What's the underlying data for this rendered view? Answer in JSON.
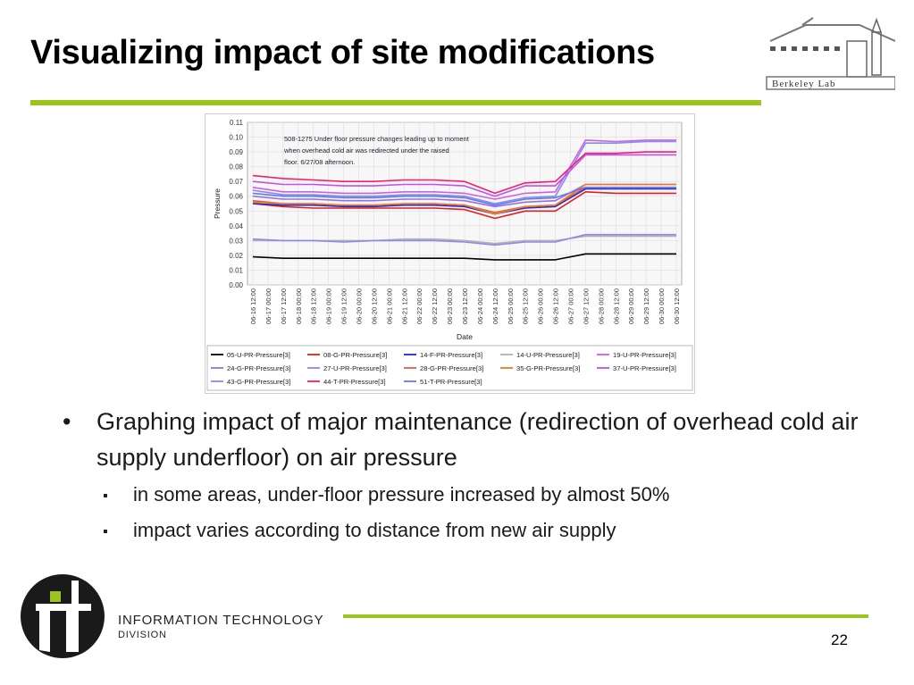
{
  "slide": {
    "title": "Visualizing impact of site modifications",
    "page_number": "22",
    "bullets": [
      {
        "text": "Graphing impact of major maintenance (redirection of overhead cold air supply underfloor) on air pressure",
        "sub": [
          "in some areas, under-floor pressure increased by almost 50%",
          "impact varies according to distance from new air supply"
        ]
      }
    ]
  },
  "logos": {
    "berkeley_lab": "Berkeley Lab",
    "it_division_line1": "INFORMATION TECHNOLOGY",
    "it_division_line2": "DIVISION"
  },
  "colors": {
    "accent_green": "#9bc51e"
  },
  "chart_data": {
    "type": "line",
    "xlabel": "Date",
    "ylabel": "Pressure",
    "ylim": [
      0.0,
      0.11
    ],
    "yticks": [
      "0.00",
      "0.01",
      "0.02",
      "0.03",
      "0.04",
      "0.05",
      "0.06",
      "0.07",
      "0.08",
      "0.09",
      "0.10",
      "0.11"
    ],
    "x_ticks": [
      "06-16 12:00",
      "06-17 00:00",
      "06-17 12:00",
      "06-18 00:00",
      "06-18 12:00",
      "06-19 00:00",
      "06-19 12:00",
      "06-20 00:00",
      "06-20 12:00",
      "06-21 00:00",
      "06-21 12:00",
      "06-22 00:00",
      "06-22 12:00",
      "06-23 00:00",
      "06-23 12:00",
      "06-24 00:00",
      "06-24 12:00",
      "06-25 00:00",
      "06-25 12:00",
      "06-26 00:00",
      "06-26 12:00",
      "06-27 00:00",
      "06-27 12:00",
      "06-28 00:00",
      "06-28 12:00",
      "06-29 00:00",
      "06-29 12:00",
      "06-30 00:00",
      "06-30 12:00"
    ],
    "annotation": [
      "508-1275 Under floor pressure changes leading up to moment",
      "when overhead cold air was redirected under the raised",
      "floor. 6/27/08 afternoon."
    ],
    "grid": true,
    "legend_position": "bottom",
    "x": [
      "06-16 12:00",
      "06-17 12:00",
      "06-18 12:00",
      "06-19 12:00",
      "06-20 12:00",
      "06-21 12:00",
      "06-22 12:00",
      "06-23 12:00",
      "06-24 12:00",
      "06-25 12:00",
      "06-26 12:00",
      "06-27 12:00",
      "06-28 12:00",
      "06-29 12:00",
      "06-30 12:00"
    ],
    "series": [
      {
        "name": "05-U-PR-Pressure[3]",
        "color": "#000000",
        "values": [
          0.019,
          0.018,
          0.018,
          0.018,
          0.018,
          0.018,
          0.018,
          0.018,
          0.017,
          0.017,
          0.017,
          0.021,
          0.021,
          0.021,
          0.021
        ]
      },
      {
        "name": "08-G-PR-Pressure[3]",
        "color": "#e02020",
        "values": [
          0.055,
          0.053,
          0.052,
          0.052,
          0.052,
          0.052,
          0.052,
          0.051,
          0.045,
          0.05,
          0.05,
          0.063,
          0.062,
          0.062,
          0.062
        ]
      },
      {
        "name": "14-F-PR-Pressure[3]",
        "color": "#1a2bd8",
        "values": [
          0.055,
          0.054,
          0.054,
          0.053,
          0.053,
          0.054,
          0.054,
          0.053,
          0.048,
          0.052,
          0.053,
          0.065,
          0.065,
          0.065,
          0.065
        ]
      },
      {
        "name": "14-U-PR-Pressure[3]",
        "color": "#b0b0b0",
        "values": [
          0.03,
          0.03,
          0.03,
          0.03,
          0.03,
          0.031,
          0.031,
          0.03,
          0.028,
          0.03,
          0.03,
          0.033,
          0.033,
          0.033,
          0.033
        ]
      },
      {
        "name": "19-U-PR-Pressure[3]",
        "color": "#d060e0",
        "values": [
          0.066,
          0.063,
          0.063,
          0.062,
          0.062,
          0.063,
          0.063,
          0.062,
          0.058,
          0.062,
          0.063,
          0.098,
          0.097,
          0.098,
          0.098
        ]
      },
      {
        "name": "24-G-PR-Pressure[3]",
        "color": "#9070f0",
        "values": [
          0.06,
          0.058,
          0.058,
          0.057,
          0.057,
          0.058,
          0.058,
          0.057,
          0.053,
          0.056,
          0.057,
          0.068,
          0.068,
          0.068,
          0.068
        ]
      },
      {
        "name": "27-U-PR-Pressure[3]",
        "color": "#7f8ff0",
        "values": [
          0.064,
          0.061,
          0.061,
          0.06,
          0.06,
          0.061,
          0.061,
          0.06,
          0.055,
          0.059,
          0.06,
          0.096,
          0.096,
          0.097,
          0.097
        ]
      },
      {
        "name": "28-G-PR-Pressure[3]",
        "color": "#e06040",
        "values": [
          0.057,
          0.055,
          0.055,
          0.054,
          0.054,
          0.055,
          0.055,
          0.054,
          0.049,
          0.053,
          0.054,
          0.066,
          0.066,
          0.066,
          0.066
        ]
      },
      {
        "name": "35-G-PR-Pressure[3]",
        "color": "#f07a20",
        "values": [
          0.056,
          0.055,
          0.055,
          0.054,
          0.054,
          0.055,
          0.055,
          0.054,
          0.048,
          0.053,
          0.054,
          0.068,
          0.068,
          0.068,
          0.068
        ]
      },
      {
        "name": "37-U-PR-Pressure[3]",
        "color": "#c050f0",
        "values": [
          0.07,
          0.068,
          0.068,
          0.067,
          0.067,
          0.068,
          0.068,
          0.067,
          0.06,
          0.067,
          0.067,
          0.088,
          0.088,
          0.088,
          0.088
        ]
      },
      {
        "name": "43-G-PR-Pressure[3]",
        "color": "#8a8ae8",
        "values": [
          0.031,
          0.03,
          0.03,
          0.029,
          0.03,
          0.03,
          0.03,
          0.029,
          0.027,
          0.029,
          0.029,
          0.034,
          0.034,
          0.034,
          0.034
        ]
      },
      {
        "name": "44-T-PR-Pressure[3]",
        "color": "#f0206a",
        "values": [
          0.074,
          0.072,
          0.071,
          0.07,
          0.07,
          0.071,
          0.071,
          0.07,
          0.062,
          0.069,
          0.07,
          0.089,
          0.089,
          0.09,
          0.09
        ]
      },
      {
        "name": "51-T-PR-Pressure[3]",
        "color": "#6a78e0",
        "values": [
          0.062,
          0.06,
          0.06,
          0.059,
          0.059,
          0.06,
          0.06,
          0.059,
          0.054,
          0.058,
          0.059,
          0.066,
          0.066,
          0.066,
          0.066
        ]
      }
    ]
  }
}
